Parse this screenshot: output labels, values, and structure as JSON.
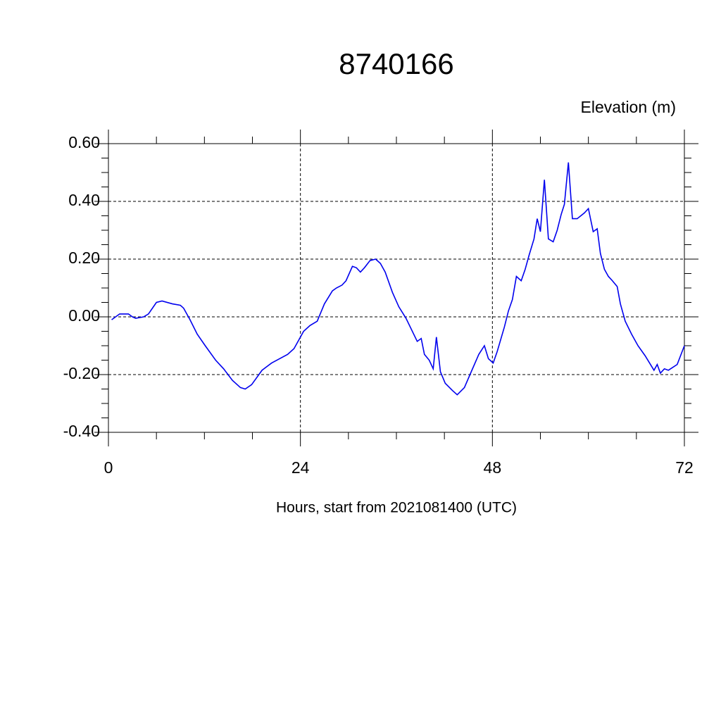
{
  "chart_data": {
    "type": "line",
    "title": "8740166",
    "ylabel": "Elevation (m)",
    "xlabel": "Hours, start from 2021081400 (UTC)",
    "xlim": [
      0,
      72
    ],
    "xticks": [
      0,
      24,
      48,
      72
    ],
    "ylim": [
      -0.4,
      0.6
    ],
    "yticks": [
      {
        "value": 0.6,
        "label": "0.60"
      },
      {
        "value": 0.4,
        "label": "0.40"
      },
      {
        "value": 0.2,
        "label": "0.20"
      },
      {
        "value": 0,
        "label": "0.00"
      },
      {
        "value": -0.2,
        "label": "-0.20"
      },
      {
        "value": -0.4,
        "label": "-0.40"
      }
    ],
    "grid": true,
    "series": [
      {
        "color": "#0000ee",
        "x": [
          0.4,
          1.4,
          2.5,
          3,
          3.4,
          4.4,
          5,
          6,
          6.7,
          8,
          9,
          9.4,
          10.2,
          11.1,
          12.1,
          13.4,
          14.4,
          15.5,
          16.5,
          17.1,
          17.9,
          19.2,
          20.4,
          21.4,
          22.4,
          23.2,
          24.4,
          25.2,
          26.1,
          27,
          28,
          28.5,
          29.2,
          29.7,
          30.5,
          31,
          31.5,
          32,
          32.7,
          33.4,
          34,
          34.6,
          35.5,
          36.3,
          37.2,
          38.6,
          39.1,
          39.5,
          40.1,
          40.6,
          41,
          41.5,
          42.1,
          43,
          43.6,
          44.5,
          45.2,
          46.3,
          47,
          47.5,
          48.1,
          48.6,
          49.5,
          50,
          50.5,
          51,
          51.6,
          52.1,
          52.6,
          53.2,
          53.6,
          54,
          54.5,
          55,
          55.6,
          56.1,
          56.6,
          57,
          57.5,
          58,
          58.6,
          59.5,
          60,
          60.6,
          61.1,
          61.5,
          62,
          62.5,
          63,
          63.6,
          64,
          64.6,
          65.4,
          66.2,
          67.1,
          68.2,
          68.6,
          69,
          69.5,
          70,
          71.1,
          72
        ],
        "values": [
          -0.01,
          0.01,
          0.01,
          0,
          -0.005,
          0,
          0.01,
          0.05,
          0.055,
          0.045,
          0.04,
          0.03,
          -0.01,
          -0.06,
          -0.1,
          -0.15,
          -0.18,
          -0.22,
          -0.245,
          -0.25,
          -0.235,
          -0.185,
          -0.16,
          -0.145,
          -0.13,
          -0.11,
          -0.05,
          -0.03,
          -0.015,
          0.045,
          0.09,
          0.1,
          0.11,
          0.125,
          0.175,
          0.17,
          0.155,
          0.17,
          0.195,
          0.2,
          0.185,
          0.155,
          0.085,
          0.035,
          -0.005,
          -0.085,
          -0.075,
          -0.13,
          -0.15,
          -0.18,
          -0.07,
          -0.19,
          -0.23,
          -0.255,
          -0.27,
          -0.245,
          -0.2,
          -0.13,
          -0.1,
          -0.145,
          -0.16,
          -0.12,
          -0.035,
          0.02,
          0.06,
          0.14,
          0.125,
          0.165,
          0.215,
          0.27,
          0.34,
          0.295,
          0.475,
          0.27,
          0.26,
          0.3,
          0.355,
          0.39,
          0.535,
          0.34,
          0.34,
          0.36,
          0.375,
          0.295,
          0.305,
          0.22,
          0.165,
          0.14,
          0.125,
          0.105,
          0.045,
          -0.015,
          -0.06,
          -0.1,
          -0.135,
          -0.185,
          -0.165,
          -0.195,
          -0.18,
          -0.185,
          -0.165,
          -0.1
        ]
      }
    ]
  }
}
